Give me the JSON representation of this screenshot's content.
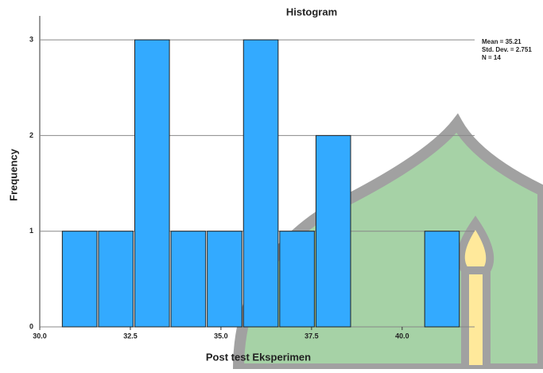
{
  "chart_data": {
    "type": "histogram",
    "title": "Histogram",
    "x_label": "Post test Eksperimen",
    "y_label": "Frequency",
    "bins": [
      30.6,
      31.6,
      32.6,
      33.6,
      34.6,
      35.6,
      36.6,
      37.6,
      38.6,
      39.6,
      40.6,
      41.6
    ],
    "values": [
      1,
      1,
      3,
      1,
      1,
      3,
      1,
      2,
      0,
      0,
      1
    ],
    "color": "#33aaff",
    "xlim": [
      30,
      42
    ],
    "xticks": [
      {
        "value": 30,
        "label": "30.0"
      },
      32.5,
      {
        "value": 35,
        "label": "35.0"
      },
      37.5,
      {
        "value": 40,
        "label": "40.0"
      }
    ],
    "ylim": [
      0,
      3.25
    ],
    "yticks": [
      0,
      1,
      2,
      3
    ],
    "grid": true,
    "stats": [
      "Mean = 35.21",
      "Std. Dev. = 2.751",
      "N = 14"
    ]
  }
}
